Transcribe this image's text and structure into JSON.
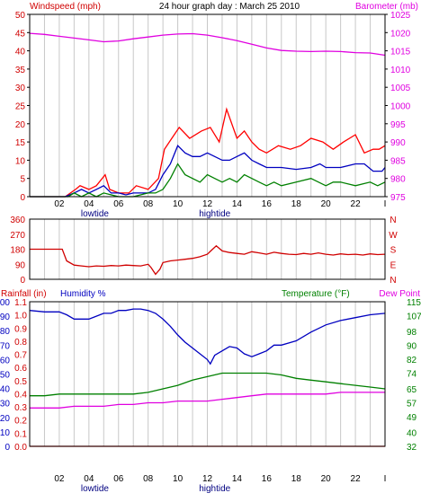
{
  "colors": {
    "background": "#ffffff",
    "plot_border": "#000000",
    "grid": "#c8c8c8",
    "windspeed_max": "#ff0000",
    "windspeed_avg": "#0000c0",
    "windspeed_min": "#008000",
    "barometer": "#e000e0",
    "wind_direction": "#d00000",
    "rainfall": "#ff0000",
    "humidity": "#0000c0",
    "temperature": "#008000",
    "dew_point": "#e000e0",
    "tide_text": "#000080"
  },
  "chart_data": [
    {
      "id": "wind",
      "type": "line",
      "title": "24 hour graph day : March 25 2010",
      "left_axis_label": "Windspeed (mph)",
      "right_axis_label": "Barometer (mb)",
      "x_tick_labels": [
        "02",
        "04",
        "06",
        "08",
        "10",
        "12",
        "14",
        "16",
        "18",
        "20",
        "22",
        "I"
      ],
      "tide_labels": [
        {
          "text": "lowtide",
          "hour": 4.4
        },
        {
          "text": "hightide",
          "hour": 12.5
        }
      ],
      "left_ticks": [
        0,
        5,
        10,
        15,
        20,
        25,
        30,
        35,
        40,
        45,
        50
      ],
      "left_ylim": [
        0,
        50
      ],
      "right_ticks": [
        975,
        980,
        985,
        990,
        995,
        1000,
        1005,
        1010,
        1015,
        1020,
        1025
      ],
      "right_ylim": [
        975,
        1025
      ],
      "xlim": [
        0,
        24
      ],
      "grid": true,
      "series": [
        {
          "key": "gust",
          "color_key": "windspeed_max",
          "x": [
            0,
            2.4,
            3.1,
            3.4,
            4,
            4.5,
            5.1,
            5.4,
            6,
            6.7,
            7.2,
            8,
            8.7,
            9.1,
            9.6,
            10.1,
            10.8,
            11.6,
            12.2,
            12.8,
            13.3,
            14,
            14.5,
            15,
            15.5,
            16,
            16.8,
            17.6,
            18.3,
            19,
            19.8,
            20.5,
            21.2,
            22,
            22.6,
            23.2,
            23.6,
            24
          ],
          "y": [
            0,
            0,
            2,
            3,
            2,
            3,
            6,
            2,
            1,
            1,
            3,
            2,
            5,
            13,
            16,
            19,
            16,
            18,
            19,
            15,
            24,
            16,
            18,
            15,
            13,
            12,
            14,
            13,
            14,
            16,
            15,
            13,
            15,
            17,
            12,
            13,
            13,
            14
          ]
        },
        {
          "key": "avg",
          "color_key": "windspeed_avg",
          "x": [
            0,
            2.4,
            3,
            3.5,
            4,
            4.5,
            5,
            5.5,
            6,
            6.5,
            7,
            7.5,
            8,
            8.5,
            9,
            9.5,
            10,
            10.5,
            11,
            11.5,
            12,
            12.5,
            13,
            13.5,
            14,
            14.5,
            15,
            15.5,
            16,
            16.5,
            17,
            18,
            19,
            19.6,
            20,
            21,
            22,
            22.6,
            23.2,
            23.8,
            24
          ],
          "y": [
            0,
            0,
            1,
            2,
            1,
            2,
            3,
            1,
            1,
            0.5,
            1,
            1,
            1,
            2,
            6,
            9,
            14,
            12,
            11,
            11,
            12,
            11,
            10,
            10,
            11,
            12,
            10,
            9,
            8,
            8,
            8,
            7.5,
            8,
            9,
            8,
            8,
            9,
            9,
            7,
            7,
            8
          ]
        },
        {
          "key": "lull",
          "color_key": "windspeed_min",
          "x": [
            0,
            2.6,
            3,
            3.5,
            4,
            4.5,
            5,
            6,
            7,
            8,
            8.5,
            9,
            9.5,
            10,
            10.5,
            11,
            11.5,
            12,
            12.5,
            13,
            13.5,
            14,
            14.5,
            15,
            15.5,
            16,
            16.5,
            17,
            18,
            19,
            20,
            20.5,
            21,
            22,
            23,
            23.5,
            24
          ],
          "y": [
            0,
            0,
            1,
            0,
            1,
            0,
            1,
            0,
            0,
            1,
            1,
            2,
            5,
            9,
            6,
            5,
            4,
            6,
            5,
            4,
            5,
            4,
            6,
            5,
            4,
            3,
            4,
            3,
            4,
            5,
            3,
            4,
            4,
            3,
            4,
            3,
            4
          ]
        },
        {
          "key": "barometer",
          "axis": "right",
          "color_key": "barometer",
          "x": [
            0,
            1,
            2,
            3,
            4,
            5,
            6,
            7,
            8,
            9,
            10,
            11,
            12,
            13,
            14,
            15,
            16,
            17,
            18,
            19,
            20,
            21,
            22,
            23,
            24
          ],
          "y": [
            1019.8,
            1019.5,
            1019,
            1018.5,
            1018,
            1017.5,
            1017.7,
            1018.3,
            1018.8,
            1019.3,
            1019.6,
            1019.7,
            1019.3,
            1018.6,
            1017.8,
            1016.8,
            1015.8,
            1015.1,
            1014.9,
            1014.8,
            1014.9,
            1014.8,
            1014.5,
            1014.4,
            1013.8
          ]
        }
      ]
    },
    {
      "id": "direction",
      "type": "line",
      "title": "",
      "left_ticks": [
        0,
        90,
        180,
        270,
        360
      ],
      "ylim": [
        0,
        360
      ],
      "compass_labels": [
        "N",
        "W",
        "S",
        "E",
        "N"
      ],
      "xlim": [
        0,
        24
      ],
      "grid": true,
      "series": [
        {
          "key": "wind_direction",
          "color_key": "wind_direction",
          "x": [
            0,
            0.5,
            1,
            1.5,
            2,
            2.2,
            2.5,
            3,
            3.5,
            4,
            4.5,
            5,
            5.5,
            6,
            6.5,
            7,
            7.5,
            8,
            8.2,
            8.5,
            8.8,
            9,
            9.5,
            10,
            10.5,
            11,
            11.5,
            12,
            12.3,
            12.6,
            13,
            13.5,
            14,
            14.5,
            15,
            15.5,
            16,
            16.5,
            17,
            17.5,
            18,
            18.5,
            19,
            19.5,
            20,
            20.5,
            21,
            21.5,
            22,
            22.5,
            23,
            23.5,
            24
          ],
          "y": [
            180,
            180,
            180,
            180,
            180,
            180,
            110,
            85,
            80,
            75,
            80,
            78,
            82,
            80,
            85,
            82,
            80,
            90,
            70,
            30,
            60,
            100,
            110,
            115,
            120,
            125,
            135,
            150,
            175,
            200,
            170,
            160,
            155,
            150,
            165,
            158,
            150,
            162,
            155,
            150,
            148,
            155,
            150,
            158,
            150,
            145,
            152,
            148,
            150,
            145,
            152,
            148,
            150
          ]
        }
      ]
    },
    {
      "id": "humidity_temperature",
      "type": "line",
      "title": "",
      "rainfall_label": "Rainfall (in)",
      "humidity_label": "Humidity %",
      "temperature_label": "Temperature (°F)",
      "dewpoint_label": "Dew Point",
      "x_tick_labels": [
        "02",
        "04",
        "06",
        "08",
        "10",
        "12",
        "14",
        "16",
        "18",
        "20",
        "22",
        "I"
      ],
      "tide_labels": [
        {
          "text": "lowtide",
          "hour": 4.4
        },
        {
          "text": "hightide",
          "hour": 12.5
        }
      ],
      "humidity_ticks": [
        0,
        10,
        20,
        30,
        40,
        50,
        60,
        70,
        80,
        90,
        100
      ],
      "humidity_ylim": [
        0,
        100
      ],
      "rain_ticks": [
        "0.0",
        "0.1",
        "0.2",
        "0.3",
        "0.4",
        "0.5",
        "0.6",
        "0.7",
        "0.8",
        "0.9",
        "1.0",
        "1.1"
      ],
      "rain_ylim": [
        0,
        1.1
      ],
      "temperature_ticks": [
        32,
        40,
        49,
        57,
        65,
        74,
        82,
        90,
        98,
        107,
        115
      ],
      "temperature_ylim": [
        32,
        115
      ],
      "xlim": [
        0,
        24
      ],
      "grid": true,
      "series": [
        {
          "key": "humidity",
          "axis": "humidity",
          "color_key": "humidity",
          "x": [
            0,
            1,
            2,
            2.5,
            3,
            4,
            4.5,
            5,
            5.5,
            6,
            6.5,
            7,
            7.5,
            8,
            8.5,
            9,
            9.5,
            10,
            10.5,
            11,
            11.5,
            12,
            12.2,
            12.5,
            13,
            13.5,
            14,
            14.5,
            15,
            15.5,
            16,
            16.5,
            17,
            18,
            19,
            20,
            21,
            22,
            23,
            24
          ],
          "y": [
            94,
            93,
            93,
            91,
            88,
            88,
            90,
            92,
            92,
            94,
            94,
            95,
            95,
            94,
            92,
            88,
            83,
            77,
            72,
            68,
            64,
            60,
            57,
            63,
            66,
            69,
            68,
            64,
            62,
            64,
            66,
            70,
            70,
            73,
            79,
            84,
            87,
            89,
            91,
            92
          ]
        },
        {
          "key": "temperature",
          "axis": "temperature",
          "color_key": "temperature",
          "x": [
            0,
            1,
            2,
            3,
            4,
            5,
            6,
            7,
            8,
            9,
            10,
            11,
            12,
            13,
            14,
            15,
            16,
            17,
            18,
            19,
            20,
            21,
            22,
            23,
            24
          ],
          "y": [
            61,
            61,
            62,
            62,
            62,
            62,
            62,
            62,
            63,
            65,
            67,
            70,
            72,
            74,
            74,
            74,
            74,
            73,
            71,
            70,
            69,
            68,
            67,
            66,
            65
          ]
        },
        {
          "key": "dew_point",
          "axis": "temperature",
          "color_key": "dew_point",
          "x": [
            0,
            1,
            2,
            3,
            4,
            5,
            6,
            7,
            8,
            9,
            10,
            11,
            12,
            13,
            14,
            15,
            16,
            17,
            18,
            19,
            20,
            21,
            22,
            23,
            24
          ],
          "y": [
            54,
            54,
            54,
            55,
            55,
            55,
            56,
            56,
            57,
            57,
            58,
            58,
            58,
            59,
            60,
            61,
            62,
            62,
            62,
            62,
            62,
            63,
            63,
            63,
            63
          ]
        },
        {
          "key": "rainfall",
          "axis": "rain",
          "color_key": "rainfall",
          "x": [
            0,
            24
          ],
          "y": [
            0,
            0
          ]
        }
      ]
    }
  ]
}
